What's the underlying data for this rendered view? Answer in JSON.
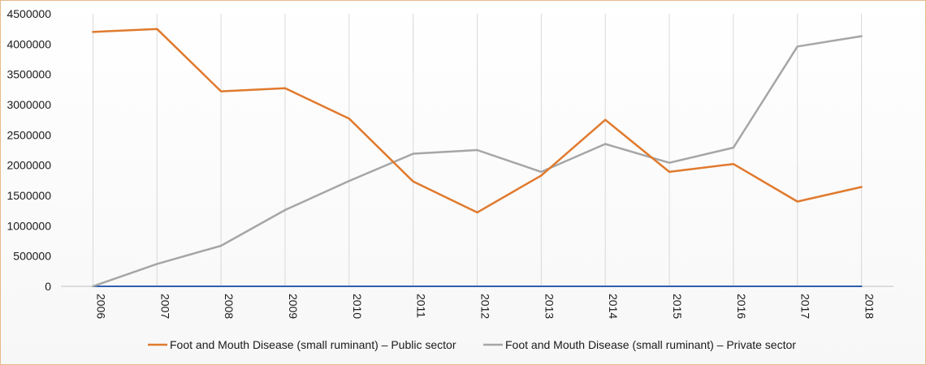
{
  "chart_data": {
    "type": "line",
    "categories": [
      "2006",
      "2007",
      "2008",
      "2009",
      "2010",
      "2011",
      "2012",
      "2013",
      "2014",
      "2015",
      "2016",
      "2017",
      "2018"
    ],
    "y_ticks": [
      "0",
      "500000",
      "1000000",
      "1500000",
      "2000000",
      "2500000",
      "3000000",
      "3500000",
      "4000000",
      "4500000"
    ],
    "ylim": [
      0,
      4500000
    ],
    "grid": "vertical",
    "legend_position": "bottom",
    "series": [
      {
        "name": "Foot and Mouth Disease (small ruminant) – Public sector",
        "color": "#e07a2e",
        "values": [
          4200000,
          4250000,
          3220000,
          3270000,
          2770000,
          1730000,
          1220000,
          1830000,
          2750000,
          1890000,
          2020000,
          1400000,
          1640000
        ],
        "in_legend": true
      },
      {
        "name": "Foot and Mouth Disease (small ruminant) – Private sector",
        "color": "#a6a6a6",
        "values": [
          0,
          370000,
          670000,
          1260000,
          1740000,
          2190000,
          2250000,
          1890000,
          2350000,
          2040000,
          2290000,
          3960000,
          4130000
        ],
        "in_legend": true
      },
      {
        "name": "",
        "color": "#2f5fae",
        "values": [
          0,
          0,
          0,
          0,
          0,
          0,
          0,
          0,
          0,
          0,
          0,
          0,
          0
        ],
        "in_legend": false
      }
    ]
  }
}
